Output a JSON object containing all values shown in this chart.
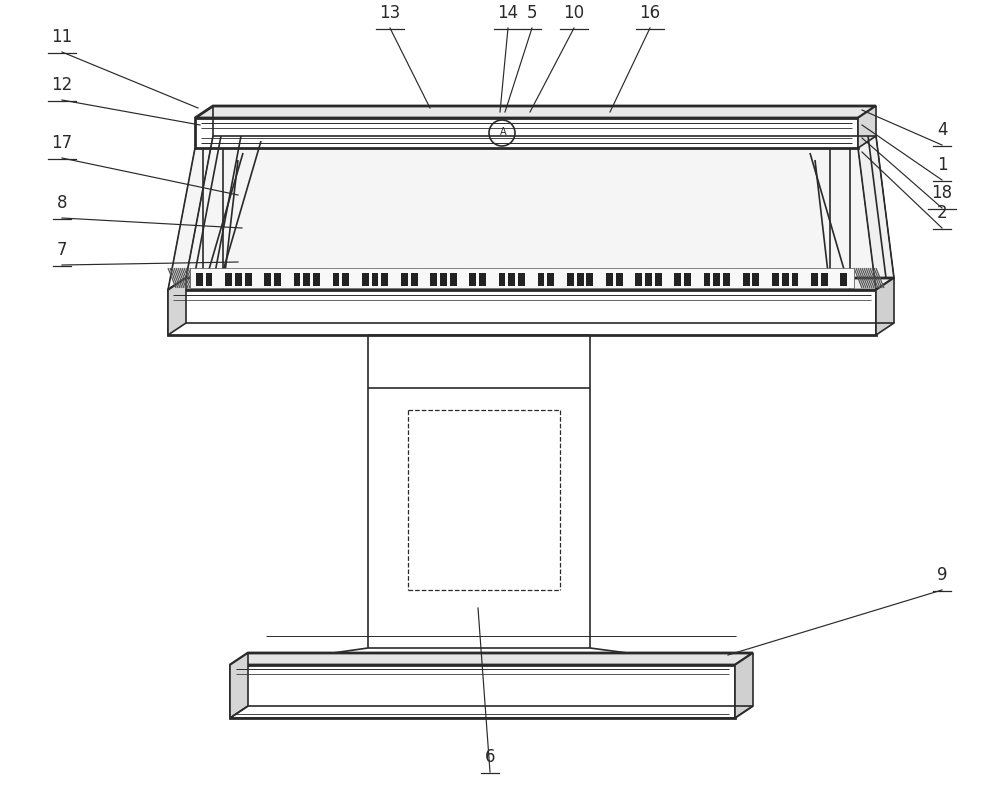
{
  "bg": "#ffffff",
  "lc": "#2a2a2a",
  "lw": 1.2,
  "tlw": 2.0,
  "annotations": [
    [
      "11",
      62,
      52,
      198,
      108
    ],
    [
      "12",
      62,
      100,
      200,
      125
    ],
    [
      "13",
      390,
      28,
      430,
      108
    ],
    [
      "14",
      508,
      28,
      500,
      112
    ],
    [
      "5",
      532,
      28,
      505,
      112
    ],
    [
      "10",
      574,
      28,
      530,
      112
    ],
    [
      "16",
      650,
      28,
      610,
      112
    ],
    [
      "4",
      942,
      145,
      862,
      110
    ],
    [
      "1",
      942,
      180,
      862,
      125
    ],
    [
      "18",
      942,
      208,
      862,
      138
    ],
    [
      "2",
      942,
      228,
      862,
      152
    ],
    [
      "17",
      62,
      158,
      238,
      195
    ],
    [
      "8",
      62,
      218,
      242,
      228
    ],
    [
      "7",
      62,
      265,
      238,
      262
    ],
    [
      "9",
      942,
      590,
      728,
      655
    ],
    [
      "6",
      490,
      772,
      478,
      608
    ]
  ]
}
